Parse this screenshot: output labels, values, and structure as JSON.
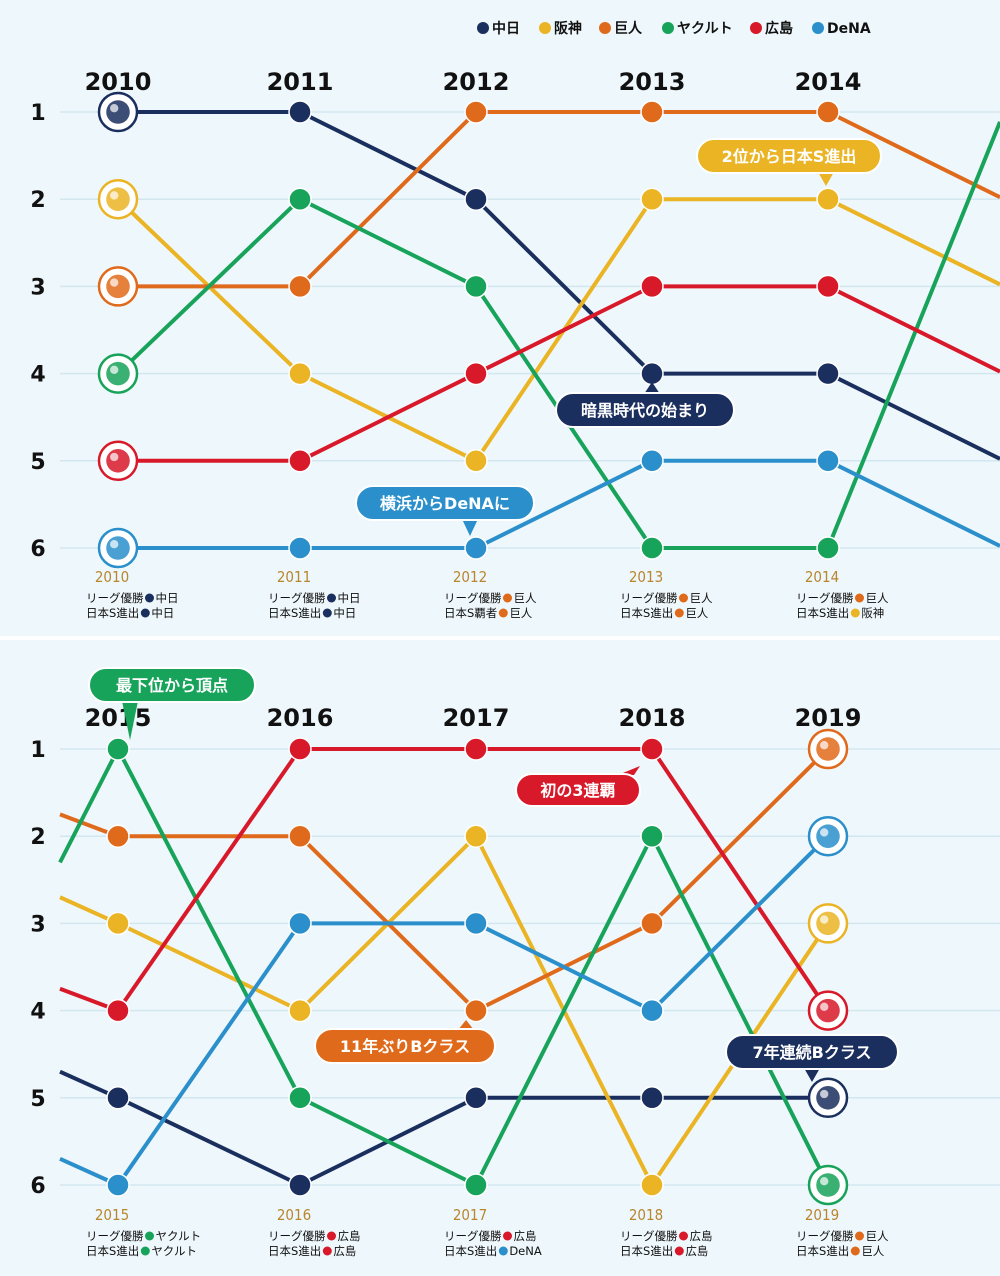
{
  "chart_data": [
    {
      "type": "line",
      "title": "",
      "xlabel": "",
      "ylabel": "",
      "x": [
        "2010",
        "2011",
        "2012",
        "2013",
        "2014"
      ],
      "ylim": [
        1,
        6
      ],
      "y_ticks": [
        "1",
        "2",
        "3",
        "4",
        "5",
        "6"
      ],
      "y_inverted": true,
      "grid": true,
      "legend": {
        "placement": "top-right",
        "entries": [
          {
            "label": "中日",
            "color": "#1b2f5e"
          },
          {
            "label": "阪神",
            "color": "#eab424"
          },
          {
            "label": "巨人",
            "color": "#e06a1b"
          },
          {
            "label": "ヤクルト",
            "color": "#17a35a"
          },
          {
            "label": "広島",
            "color": "#d8192a"
          },
          {
            "label": "DeNA",
            "color": "#2a8fcb"
          }
        ]
      },
      "series": [
        {
          "name": "中日",
          "color": "#1b2f5e",
          "values": [
            1,
            1,
            2,
            4,
            4
          ],
          "next": 5
        },
        {
          "name": "阪神",
          "color": "#eab424",
          "values": [
            2,
            4,
            5,
            2,
            2
          ],
          "next": 3
        },
        {
          "name": "巨人",
          "color": "#e06a1b",
          "values": [
            3,
            3,
            1,
            1,
            1
          ],
          "next": 2
        },
        {
          "name": "ヤクルト",
          "color": "#17a35a",
          "values": [
            4,
            2,
            3,
            6,
            6
          ],
          "next": 1
        },
        {
          "name": "広島",
          "color": "#d8192a",
          "values": [
            5,
            5,
            4,
            3,
            3
          ],
          "next": 4
        },
        {
          "name": "DeNA",
          "color": "#2a8fcb",
          "values": [
            6,
            6,
            6,
            5,
            5
          ],
          "next": 6
        }
      ],
      "annotations": [
        {
          "text": "2位から日本S進出",
          "color": "#eab424",
          "year": "2014",
          "rank": 2
        },
        {
          "text": "暗黒時代の始まり",
          "color": "#1b2f5e",
          "year": "2013",
          "rank": 4
        },
        {
          "text": "横浜からDeNAに",
          "color": "#2a8fcb",
          "year": "2012",
          "rank": 6
        }
      ],
      "footer": [
        {
          "year": "2010",
          "rows": [
            {
              "label": "リーグ優勝",
              "team": "中日",
              "color": "#1b2f5e"
            },
            {
              "label": "日本S進出",
              "team": "中日",
              "color": "#1b2f5e"
            }
          ]
        },
        {
          "year": "2011",
          "rows": [
            {
              "label": "リーグ優勝",
              "team": "中日",
              "color": "#1b2f5e"
            },
            {
              "label": "日本S進出",
              "team": "中日",
              "color": "#1b2f5e"
            }
          ]
        },
        {
          "year": "2012",
          "rows": [
            {
              "label": "リーグ優勝",
              "team": "巨人",
              "color": "#e06a1b"
            },
            {
              "label": "日本S覇者",
              "team": "巨人",
              "color": "#e06a1b"
            }
          ]
        },
        {
          "year": "2013",
          "rows": [
            {
              "label": "リーグ優勝",
              "team": "巨人",
              "color": "#e06a1b"
            },
            {
              "label": "日本S進出",
              "team": "巨人",
              "color": "#e06a1b"
            }
          ]
        },
        {
          "year": "2014",
          "rows": [
            {
              "label": "リーグ優勝",
              "team": "巨人",
              "color": "#e06a1b"
            },
            {
              "label": "日本S進出",
              "team": "阪神",
              "color": "#eab424"
            }
          ]
        }
      ]
    },
    {
      "type": "line",
      "title": "",
      "xlabel": "",
      "ylabel": "",
      "x": [
        "2015",
        "2016",
        "2017",
        "2018",
        "2019"
      ],
      "ylim": [
        1,
        6
      ],
      "y_ticks": [
        "1",
        "2",
        "3",
        "4",
        "5",
        "6"
      ],
      "y_inverted": true,
      "grid": true,
      "series": [
        {
          "name": "中日",
          "color": "#1b2f5e",
          "values": [
            5,
            6,
            5,
            5,
            5
          ],
          "prev": 4.7
        },
        {
          "name": "阪神",
          "color": "#eab424",
          "values": [
            3,
            4,
            2,
            6,
            3
          ],
          "prev": 2.7
        },
        {
          "name": "巨人",
          "color": "#e06a1b",
          "values": [
            2,
            2,
            4,
            3,
            1
          ],
          "prev": 1.75
        },
        {
          "name": "ヤクルト",
          "color": "#17a35a",
          "values": [
            1,
            5,
            6,
            2,
            6
          ],
          "prev": 2.3
        },
        {
          "name": "広島",
          "color": "#d8192a",
          "values": [
            4,
            1,
            1,
            1,
            4
          ],
          "prev": 3.75
        },
        {
          "name": "DeNA",
          "color": "#2a8fcb",
          "values": [
            6,
            3,
            3,
            4,
            2
          ],
          "prev": 5.7
        }
      ],
      "annotations": [
        {
          "text": "最下位から頂点",
          "color": "#17a35a",
          "year": "2015",
          "rank": 1
        },
        {
          "text": "初の3連覇",
          "color": "#d8192a",
          "year": "2018",
          "rank": 1
        },
        {
          "text": "11年ぶりBクラス",
          "color": "#e06a1b",
          "year": "2017",
          "rank": 4
        },
        {
          "text": "7年連続Bクラス",
          "color": "#1b2f5e",
          "year": "2019",
          "rank": 5
        }
      ],
      "footer": [
        {
          "year": "2015",
          "rows": [
            {
              "label": "リーグ優勝",
              "team": "ヤクルト",
              "color": "#17a35a"
            },
            {
              "label": "日本S進出",
              "team": "ヤクルト",
              "color": "#17a35a"
            }
          ]
        },
        {
          "year": "2016",
          "rows": [
            {
              "label": "リーグ優勝",
              "team": "広島",
              "color": "#d8192a"
            },
            {
              "label": "日本S進出",
              "team": "広島",
              "color": "#d8192a"
            }
          ]
        },
        {
          "year": "2017",
          "rows": [
            {
              "label": "リーグ優勝",
              "team": "広島",
              "color": "#d8192a"
            },
            {
              "label": "日本S進出",
              "team": "DeNA",
              "color": "#2a8fcb"
            }
          ]
        },
        {
          "year": "2018",
          "rows": [
            {
              "label": "リーグ優勝",
              "team": "広島",
              "color": "#d8192a"
            },
            {
              "label": "日本S進出",
              "team": "広島",
              "color": "#d8192a"
            }
          ]
        },
        {
          "year": "2019",
          "rows": [
            {
              "label": "リーグ優勝",
              "team": "巨人",
              "color": "#e06a1b"
            },
            {
              "label": "日本S進出",
              "team": "巨人",
              "color": "#e06a1b"
            }
          ]
        }
      ]
    }
  ],
  "team_logos": {
    "start_order": [
      "中日",
      "阪神",
      "巨人",
      "ヤクルト",
      "広島",
      "DeNA"
    ],
    "end_order": [
      "巨人",
      "DeNA",
      "阪神",
      "広島",
      "中日",
      "ヤクルト"
    ],
    "icons": {
      "中日": "dragons-logo-icon",
      "阪神": "tigers-logo-icon",
      "巨人": "giants-logo-icon",
      "ヤクルト": "swallows-logo-icon",
      "広島": "carp-logo-icon",
      "DeNA": "baystars-logo-icon"
    }
  }
}
